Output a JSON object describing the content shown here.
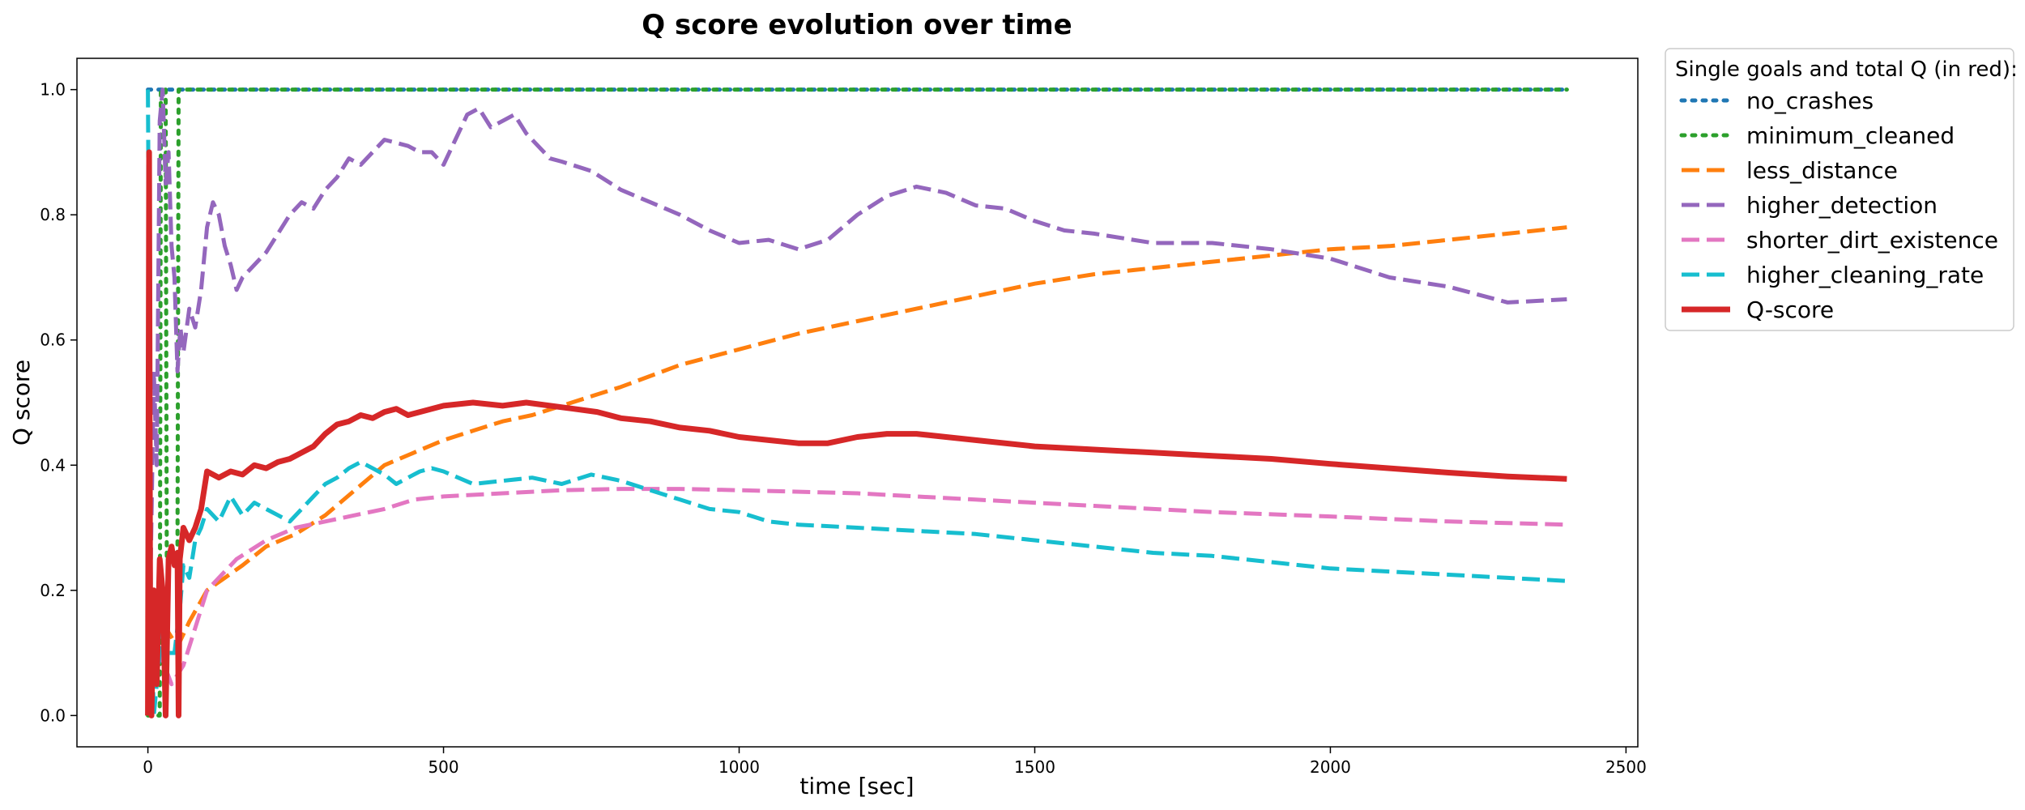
{
  "chart_data": {
    "type": "line",
    "title": "Q score evolution over time",
    "xlabel": "time [sec]",
    "ylabel": "Q score",
    "xlim": [
      -120,
      2520
    ],
    "ylim": [
      -0.05,
      1.05
    ],
    "xticks": [
      0,
      500,
      1000,
      1500,
      2000,
      2500
    ],
    "yticks": [
      0.0,
      0.2,
      0.4,
      0.6,
      0.8,
      1.0
    ],
    "xtick_labels": [
      "0",
      "500",
      "1000",
      "1500",
      "2000",
      "2500"
    ],
    "ytick_labels": [
      "0.0",
      "0.2",
      "0.4",
      "0.6",
      "0.8",
      "1.0"
    ],
    "grid": false,
    "legend": {
      "title": "Single goals and total Q (in red):",
      "placement": "outside-top-right"
    },
    "series": [
      {
        "name": "no_crashes",
        "color": "#1f77b4",
        "style": "dotted",
        "points": [
          [
            0,
            1.0
          ],
          [
            2400,
            1.0
          ]
        ]
      },
      {
        "name": "minimum_cleaned",
        "color": "#2ca02c",
        "style": "dotted",
        "points": [
          [
            0,
            0.0
          ],
          [
            20,
            0.0
          ],
          [
            22,
            1.0
          ],
          [
            30,
            1.0
          ],
          [
            32,
            0.25
          ],
          [
            50,
            0.25
          ],
          [
            52,
            1.0
          ],
          [
            2400,
            1.0
          ]
        ]
      },
      {
        "name": "less_distance",
        "color": "#ff7f0e",
        "style": "dashed",
        "points": [
          [
            0,
            0.14
          ],
          [
            15,
            0.12
          ],
          [
            30,
            0.14
          ],
          [
            50,
            0.11
          ],
          [
            70,
            0.15
          ],
          [
            100,
            0.2
          ],
          [
            130,
            0.22
          ],
          [
            160,
            0.24
          ],
          [
            200,
            0.27
          ],
          [
            250,
            0.29
          ],
          [
            300,
            0.32
          ],
          [
            350,
            0.36
          ],
          [
            400,
            0.4
          ],
          [
            450,
            0.42
          ],
          [
            500,
            0.44
          ],
          [
            550,
            0.455
          ],
          [
            600,
            0.47
          ],
          [
            650,
            0.48
          ],
          [
            700,
            0.495
          ],
          [
            750,
            0.51
          ],
          [
            800,
            0.525
          ],
          [
            900,
            0.56
          ],
          [
            1000,
            0.585
          ],
          [
            1100,
            0.61
          ],
          [
            1200,
            0.63
          ],
          [
            1300,
            0.65
          ],
          [
            1400,
            0.67
          ],
          [
            1500,
            0.69
          ],
          [
            1600,
            0.705
          ],
          [
            1700,
            0.715
          ],
          [
            1800,
            0.725
          ],
          [
            1900,
            0.735
          ],
          [
            2000,
            0.745
          ],
          [
            2100,
            0.75
          ],
          [
            2200,
            0.76
          ],
          [
            2300,
            0.77
          ],
          [
            2400,
            0.78
          ]
        ]
      },
      {
        "name": "higher_detection",
        "color": "#9467bd",
        "style": "dashed",
        "points": [
          [
            0,
            0.3
          ],
          [
            5,
            0.25
          ],
          [
            10,
            0.55
          ],
          [
            15,
            0.4
          ],
          [
            20,
            0.95
          ],
          [
            25,
            1.0
          ],
          [
            30,
            0.85
          ],
          [
            35,
            0.9
          ],
          [
            40,
            0.75
          ],
          [
            45,
            0.7
          ],
          [
            50,
            0.55
          ],
          [
            55,
            0.62
          ],
          [
            60,
            0.58
          ],
          [
            70,
            0.65
          ],
          [
            80,
            0.62
          ],
          [
            90,
            0.68
          ],
          [
            100,
            0.78
          ],
          [
            110,
            0.82
          ],
          [
            120,
            0.8
          ],
          [
            130,
            0.75
          ],
          [
            140,
            0.72
          ],
          [
            150,
            0.68
          ],
          [
            160,
            0.7
          ],
          [
            180,
            0.72
          ],
          [
            200,
            0.74
          ],
          [
            220,
            0.77
          ],
          [
            240,
            0.8
          ],
          [
            260,
            0.82
          ],
          [
            280,
            0.81
          ],
          [
            300,
            0.84
          ],
          [
            320,
            0.86
          ],
          [
            340,
            0.89
          ],
          [
            360,
            0.88
          ],
          [
            380,
            0.9
          ],
          [
            400,
            0.92
          ],
          [
            420,
            0.915
          ],
          [
            440,
            0.91
          ],
          [
            460,
            0.9
          ],
          [
            480,
            0.9
          ],
          [
            500,
            0.88
          ],
          [
            520,
            0.92
          ],
          [
            540,
            0.96
          ],
          [
            560,
            0.97
          ],
          [
            580,
            0.94
          ],
          [
            600,
            0.95
          ],
          [
            620,
            0.96
          ],
          [
            640,
            0.93
          ],
          [
            660,
            0.91
          ],
          [
            680,
            0.89
          ],
          [
            700,
            0.885
          ],
          [
            750,
            0.87
          ],
          [
            800,
            0.84
          ],
          [
            850,
            0.82
          ],
          [
            900,
            0.8
          ],
          [
            950,
            0.775
          ],
          [
            1000,
            0.755
          ],
          [
            1050,
            0.76
          ],
          [
            1100,
            0.745
          ],
          [
            1150,
            0.76
          ],
          [
            1200,
            0.8
          ],
          [
            1250,
            0.83
          ],
          [
            1300,
            0.845
          ],
          [
            1350,
            0.835
          ],
          [
            1400,
            0.815
          ],
          [
            1450,
            0.81
          ],
          [
            1500,
            0.79
          ],
          [
            1550,
            0.775
          ],
          [
            1600,
            0.77
          ],
          [
            1700,
            0.755
          ],
          [
            1800,
            0.755
          ],
          [
            1900,
            0.745
          ],
          [
            2000,
            0.73
          ],
          [
            2100,
            0.7
          ],
          [
            2200,
            0.685
          ],
          [
            2300,
            0.66
          ],
          [
            2400,
            0.665
          ]
        ]
      },
      {
        "name": "shorter_dirt_existence",
        "color": "#e377c2",
        "style": "dashed",
        "points": [
          [
            0,
            0.15
          ],
          [
            20,
            0.1
          ],
          [
            40,
            0.05
          ],
          [
            60,
            0.08
          ],
          [
            80,
            0.14
          ],
          [
            100,
            0.2
          ],
          [
            150,
            0.25
          ],
          [
            200,
            0.28
          ],
          [
            250,
            0.3
          ],
          [
            300,
            0.31
          ],
          [
            350,
            0.32
          ],
          [
            400,
            0.33
          ],
          [
            450,
            0.345
          ],
          [
            500,
            0.35
          ],
          [
            600,
            0.355
          ],
          [
            700,
            0.36
          ],
          [
            800,
            0.362
          ],
          [
            900,
            0.362
          ],
          [
            1000,
            0.36
          ],
          [
            1200,
            0.355
          ],
          [
            1400,
            0.345
          ],
          [
            1600,
            0.335
          ],
          [
            1800,
            0.325
          ],
          [
            2000,
            0.318
          ],
          [
            2200,
            0.31
          ],
          [
            2400,
            0.305
          ]
        ]
      },
      {
        "name": "higher_cleaning_rate",
        "color": "#17becf",
        "style": "dashed",
        "points": [
          [
            0,
            1.0
          ],
          [
            5,
            0.2
          ],
          [
            10,
            0.0
          ],
          [
            15,
            0.05
          ],
          [
            25,
            0.15
          ],
          [
            35,
            0.1
          ],
          [
            45,
            0.1
          ],
          [
            55,
            0.18
          ],
          [
            60,
            0.24
          ],
          [
            70,
            0.22
          ],
          [
            80,
            0.28
          ],
          [
            90,
            0.3
          ],
          [
            100,
            0.33
          ],
          [
            120,
            0.31
          ],
          [
            140,
            0.35
          ],
          [
            160,
            0.32
          ],
          [
            180,
            0.34
          ],
          [
            200,
            0.33
          ],
          [
            220,
            0.32
          ],
          [
            240,
            0.31
          ],
          [
            260,
            0.33
          ],
          [
            280,
            0.35
          ],
          [
            300,
            0.37
          ],
          [
            320,
            0.38
          ],
          [
            340,
            0.395
          ],
          [
            360,
            0.405
          ],
          [
            380,
            0.395
          ],
          [
            400,
            0.385
          ],
          [
            420,
            0.37
          ],
          [
            440,
            0.38
          ],
          [
            460,
            0.39
          ],
          [
            480,
            0.395
          ],
          [
            500,
            0.39
          ],
          [
            550,
            0.37
          ],
          [
            600,
            0.375
          ],
          [
            650,
            0.38
          ],
          [
            700,
            0.37
          ],
          [
            750,
            0.385
          ],
          [
            800,
            0.375
          ],
          [
            850,
            0.36
          ],
          [
            900,
            0.345
          ],
          [
            950,
            0.33
          ],
          [
            1000,
            0.325
          ],
          [
            1050,
            0.31
          ],
          [
            1100,
            0.305
          ],
          [
            1200,
            0.3
          ],
          [
            1300,
            0.295
          ],
          [
            1400,
            0.29
          ],
          [
            1500,
            0.28
          ],
          [
            1600,
            0.27
          ],
          [
            1700,
            0.26
          ],
          [
            1800,
            0.255
          ],
          [
            1900,
            0.245
          ],
          [
            2000,
            0.235
          ],
          [
            2100,
            0.23
          ],
          [
            2200,
            0.225
          ],
          [
            2300,
            0.22
          ],
          [
            2400,
            0.215
          ]
        ]
      },
      {
        "name": "Q-score",
        "color": "#d62728",
        "style": "solid",
        "points": [
          [
            0,
            0.0
          ],
          [
            2,
            0.9
          ],
          [
            4,
            0.1
          ],
          [
            6,
            0.0
          ],
          [
            10,
            0.2
          ],
          [
            15,
            0.05
          ],
          [
            20,
            0.25
          ],
          [
            25,
            0.2
          ],
          [
            30,
            0.0
          ],
          [
            35,
            0.25
          ],
          [
            40,
            0.27
          ],
          [
            45,
            0.24
          ],
          [
            50,
            0.26
          ],
          [
            52,
            0.0
          ],
          [
            54,
            0.25
          ],
          [
            60,
            0.3
          ],
          [
            70,
            0.28
          ],
          [
            80,
            0.3
          ],
          [
            90,
            0.33
          ],
          [
            100,
            0.39
          ],
          [
            120,
            0.38
          ],
          [
            140,
            0.39
          ],
          [
            160,
            0.385
          ],
          [
            180,
            0.4
          ],
          [
            200,
            0.395
          ],
          [
            220,
            0.405
          ],
          [
            240,
            0.41
          ],
          [
            260,
            0.42
          ],
          [
            280,
            0.43
          ],
          [
            300,
            0.45
          ],
          [
            320,
            0.465
          ],
          [
            340,
            0.47
          ],
          [
            360,
            0.48
          ],
          [
            380,
            0.475
          ],
          [
            400,
            0.485
          ],
          [
            420,
            0.49
          ],
          [
            440,
            0.48
          ],
          [
            460,
            0.485
          ],
          [
            480,
            0.49
          ],
          [
            500,
            0.495
          ],
          [
            550,
            0.5
          ],
          [
            600,
            0.495
          ],
          [
            640,
            0.5
          ],
          [
            680,
            0.495
          ],
          [
            720,
            0.49
          ],
          [
            760,
            0.485
          ],
          [
            800,
            0.475
          ],
          [
            850,
            0.47
          ],
          [
            900,
            0.46
          ],
          [
            950,
            0.455
          ],
          [
            1000,
            0.445
          ],
          [
            1050,
            0.44
          ],
          [
            1100,
            0.435
          ],
          [
            1150,
            0.435
          ],
          [
            1200,
            0.445
          ],
          [
            1250,
            0.45
          ],
          [
            1300,
            0.45
          ],
          [
            1350,
            0.445
          ],
          [
            1400,
            0.44
          ],
          [
            1500,
            0.43
          ],
          [
            1600,
            0.425
          ],
          [
            1700,
            0.42
          ],
          [
            1800,
            0.415
          ],
          [
            1900,
            0.41
          ],
          [
            2000,
            0.402
          ],
          [
            2100,
            0.395
          ],
          [
            2200,
            0.388
          ],
          [
            2300,
            0.382
          ],
          [
            2400,
            0.378
          ]
        ]
      }
    ]
  }
}
